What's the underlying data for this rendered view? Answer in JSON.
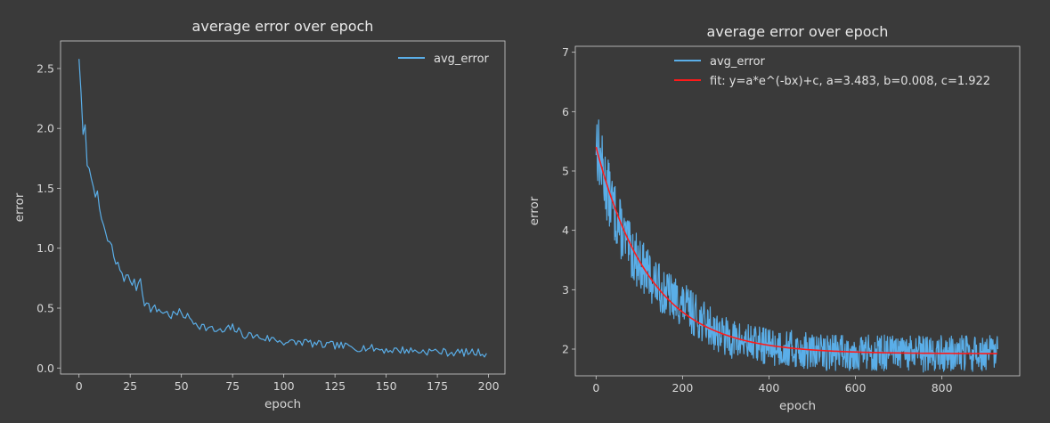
{
  "chart_data": [
    {
      "type": "line",
      "title": "average error over epoch",
      "xlabel": "epoch",
      "ylabel": "error",
      "xlim": [
        -9,
        208
      ],
      "ylim": [
        -0.05,
        2.73
      ],
      "xticks": [
        0,
        25,
        50,
        75,
        100,
        125,
        150,
        175,
        200
      ],
      "yticks": [
        0.0,
        0.5,
        1.0,
        1.5,
        2.0,
        2.5
      ],
      "ytick_labels": [
        "0.0",
        "0.5",
        "1.0",
        "1.5",
        "2.0",
        "2.5"
      ],
      "legend_position": "top-right",
      "series": [
        {
          "name": "avg_error",
          "color": "#5aaee8",
          "x": [
            0,
            1,
            2,
            3,
            4,
            5,
            6,
            7,
            8,
            9,
            10,
            12,
            14,
            16,
            18,
            20,
            22,
            25,
            28,
            30,
            32,
            35,
            40,
            45,
            50,
            55,
            60,
            65,
            70,
            75,
            80,
            85,
            90,
            95,
            100,
            105,
            110,
            115,
            120,
            125,
            130,
            135,
            140,
            145,
            150,
            155,
            160,
            165,
            170,
            175,
            180,
            185,
            190,
            195,
            199
          ],
          "values": [
            2.58,
            2.3,
            1.95,
            1.97,
            1.75,
            1.62,
            1.6,
            1.57,
            1.48,
            1.42,
            1.28,
            1.2,
            1.05,
            1.0,
            0.87,
            0.83,
            0.76,
            0.74,
            0.68,
            0.75,
            0.55,
            0.5,
            0.48,
            0.44,
            0.46,
            0.4,
            0.35,
            0.32,
            0.3,
            0.34,
            0.28,
            0.27,
            0.25,
            0.24,
            0.22,
            0.21,
            0.22,
            0.2,
            0.19,
            0.19,
            0.18,
            0.17,
            0.17,
            0.16,
            0.15,
            0.15,
            0.15,
            0.14,
            0.14,
            0.14,
            0.13,
            0.13,
            0.13,
            0.13,
            0.12
          ],
          "noise_seed": 7,
          "noise_amplitude": 0.06
        }
      ]
    },
    {
      "type": "line",
      "title": "average error over epoch",
      "xlabel": "epoch",
      "ylabel": "error",
      "xlim": [
        -48,
        980
      ],
      "ylim": [
        1.55,
        7.1
      ],
      "xticks": [
        0,
        200,
        400,
        600,
        800
      ],
      "yticks": [
        2,
        3,
        4,
        5,
        6,
        7
      ],
      "legend_position": "top-center",
      "series": [
        {
          "name": "avg_error",
          "color": "#5aaee8",
          "x": [
            0,
            5,
            10,
            20,
            30,
            50,
            75,
            100,
            150,
            200,
            250,
            300,
            350,
            400,
            500,
            600,
            700,
            800,
            930
          ],
          "values": [
            5.6,
            5.35,
            5.15,
            4.85,
            4.6,
            4.15,
            3.7,
            3.45,
            3.0,
            2.75,
            2.45,
            2.2,
            2.1,
            2.05,
            1.95,
            1.95,
            1.92,
            1.92,
            1.92
          ],
          "noise_seed": 13,
          "noise_amplitude": 0.32,
          "n_points": 930
        },
        {
          "name": "fit: y=a*e^(-bx)+c, a=3.483, b=0.008, c=1.922",
          "color": "#ff1a1a",
          "fit": {
            "a": 3.483,
            "b": 0.008,
            "c": 1.922,
            "x_end": 930
          }
        }
      ]
    }
  ]
}
